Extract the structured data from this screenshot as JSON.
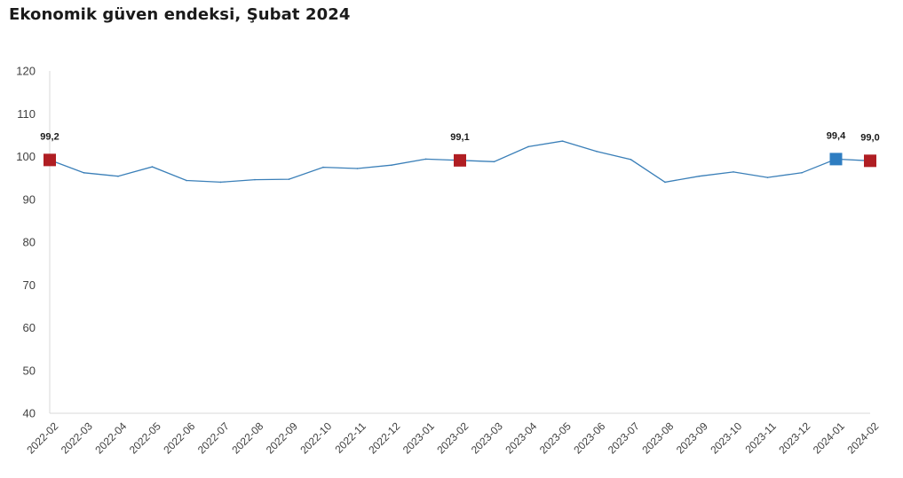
{
  "chart_data": {
    "type": "line",
    "title": "Ekonomik güven endeksi, Şubat 2024",
    "xlabel": "",
    "ylabel": "",
    "ylim": [
      40,
      120
    ],
    "yticks": [
      40,
      50,
      60,
      70,
      80,
      90,
      100,
      110,
      120
    ],
    "grid": false,
    "categories": [
      "2022-02",
      "2022-03",
      "2022-04",
      "2022-05",
      "2022-06",
      "2022-07",
      "2022-08",
      "2022-09",
      "2022-10",
      "2022-11",
      "2022-12",
      "2023-01",
      "2023-02",
      "2023-03",
      "2023-04",
      "2023-05",
      "2023-06",
      "2023-07",
      "2023-08",
      "2023-09",
      "2023-10",
      "2023-11",
      "2023-12",
      "2024-01",
      "2024-02"
    ],
    "series": [
      {
        "values": [
          99.2,
          96.2,
          95.4,
          97.6,
          94.4,
          94.0,
          94.6,
          94.7,
          97.5,
          97.2,
          98.0,
          99.4,
          99.1,
          98.8,
          102.3,
          103.6,
          101.2,
          99.3,
          94.0,
          95.4,
          96.4,
          95.1,
          96.2,
          99.4,
          99.0
        ],
        "color": "#3a7fb8"
      }
    ],
    "markers": [
      {
        "index": 0,
        "color": "#b01e23",
        "label": "99,2"
      },
      {
        "index": 12,
        "color": "#b01e23",
        "label": "99,1"
      },
      {
        "index": 23,
        "color": "#2e7dc1",
        "label": "99,4"
      },
      {
        "index": 24,
        "color": "#b01e23",
        "label": "99,0"
      }
    ],
    "colors": {
      "line": "#3a7fb8",
      "axis": "#d9d9d9",
      "highlight_red": "#b01e23",
      "highlight_blue": "#2e7dc1"
    }
  }
}
